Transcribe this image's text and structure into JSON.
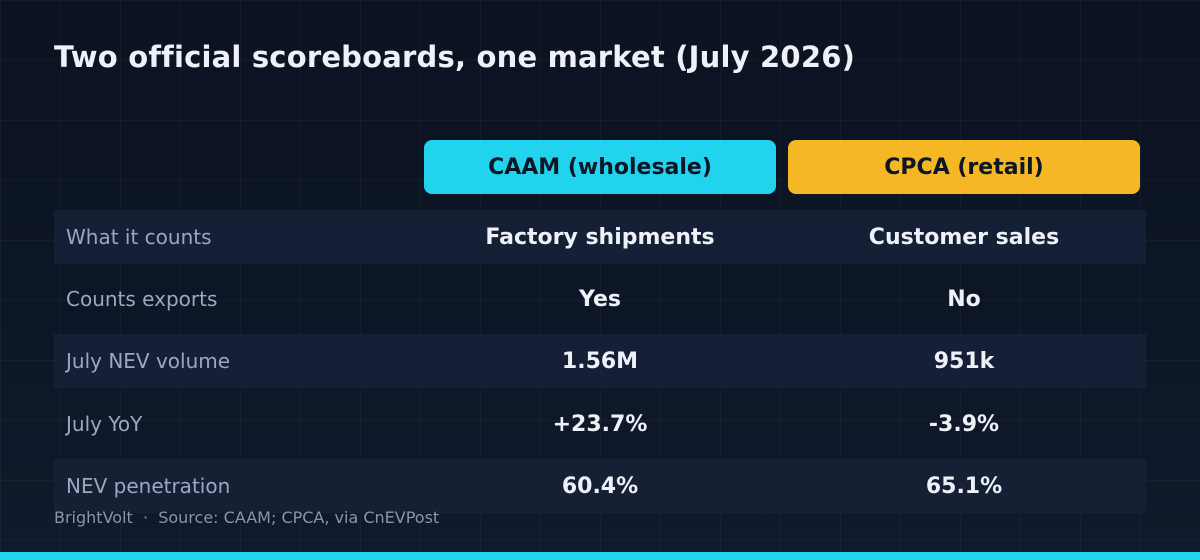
{
  "title": "Two official scoreboards, one market (July 2026)",
  "columns": [
    {
      "label": "CAAM (wholesale)",
      "color": "#22d3ee"
    },
    {
      "label": "CPCA (retail)",
      "color": "#f5b824"
    }
  ],
  "rows": [
    {
      "label": "What it counts",
      "values": [
        "Factory shipments",
        "Customer sales"
      ]
    },
    {
      "label": "Counts exports",
      "values": [
        "Yes",
        "No"
      ]
    },
    {
      "label": "July NEV volume",
      "values": [
        "1.56M",
        "951k"
      ]
    },
    {
      "label": "July YoY",
      "values": [
        "+23.7%",
        "-3.9%"
      ]
    },
    {
      "label": "NEV penetration",
      "values": [
        "60.4%",
        "65.1%"
      ]
    }
  ],
  "footer": {
    "brand": "BrightVolt",
    "separator": "·",
    "source": "Source: CAAM; CPCA, via CnEVPost"
  },
  "accent_bar_color": "#22d3ee"
}
